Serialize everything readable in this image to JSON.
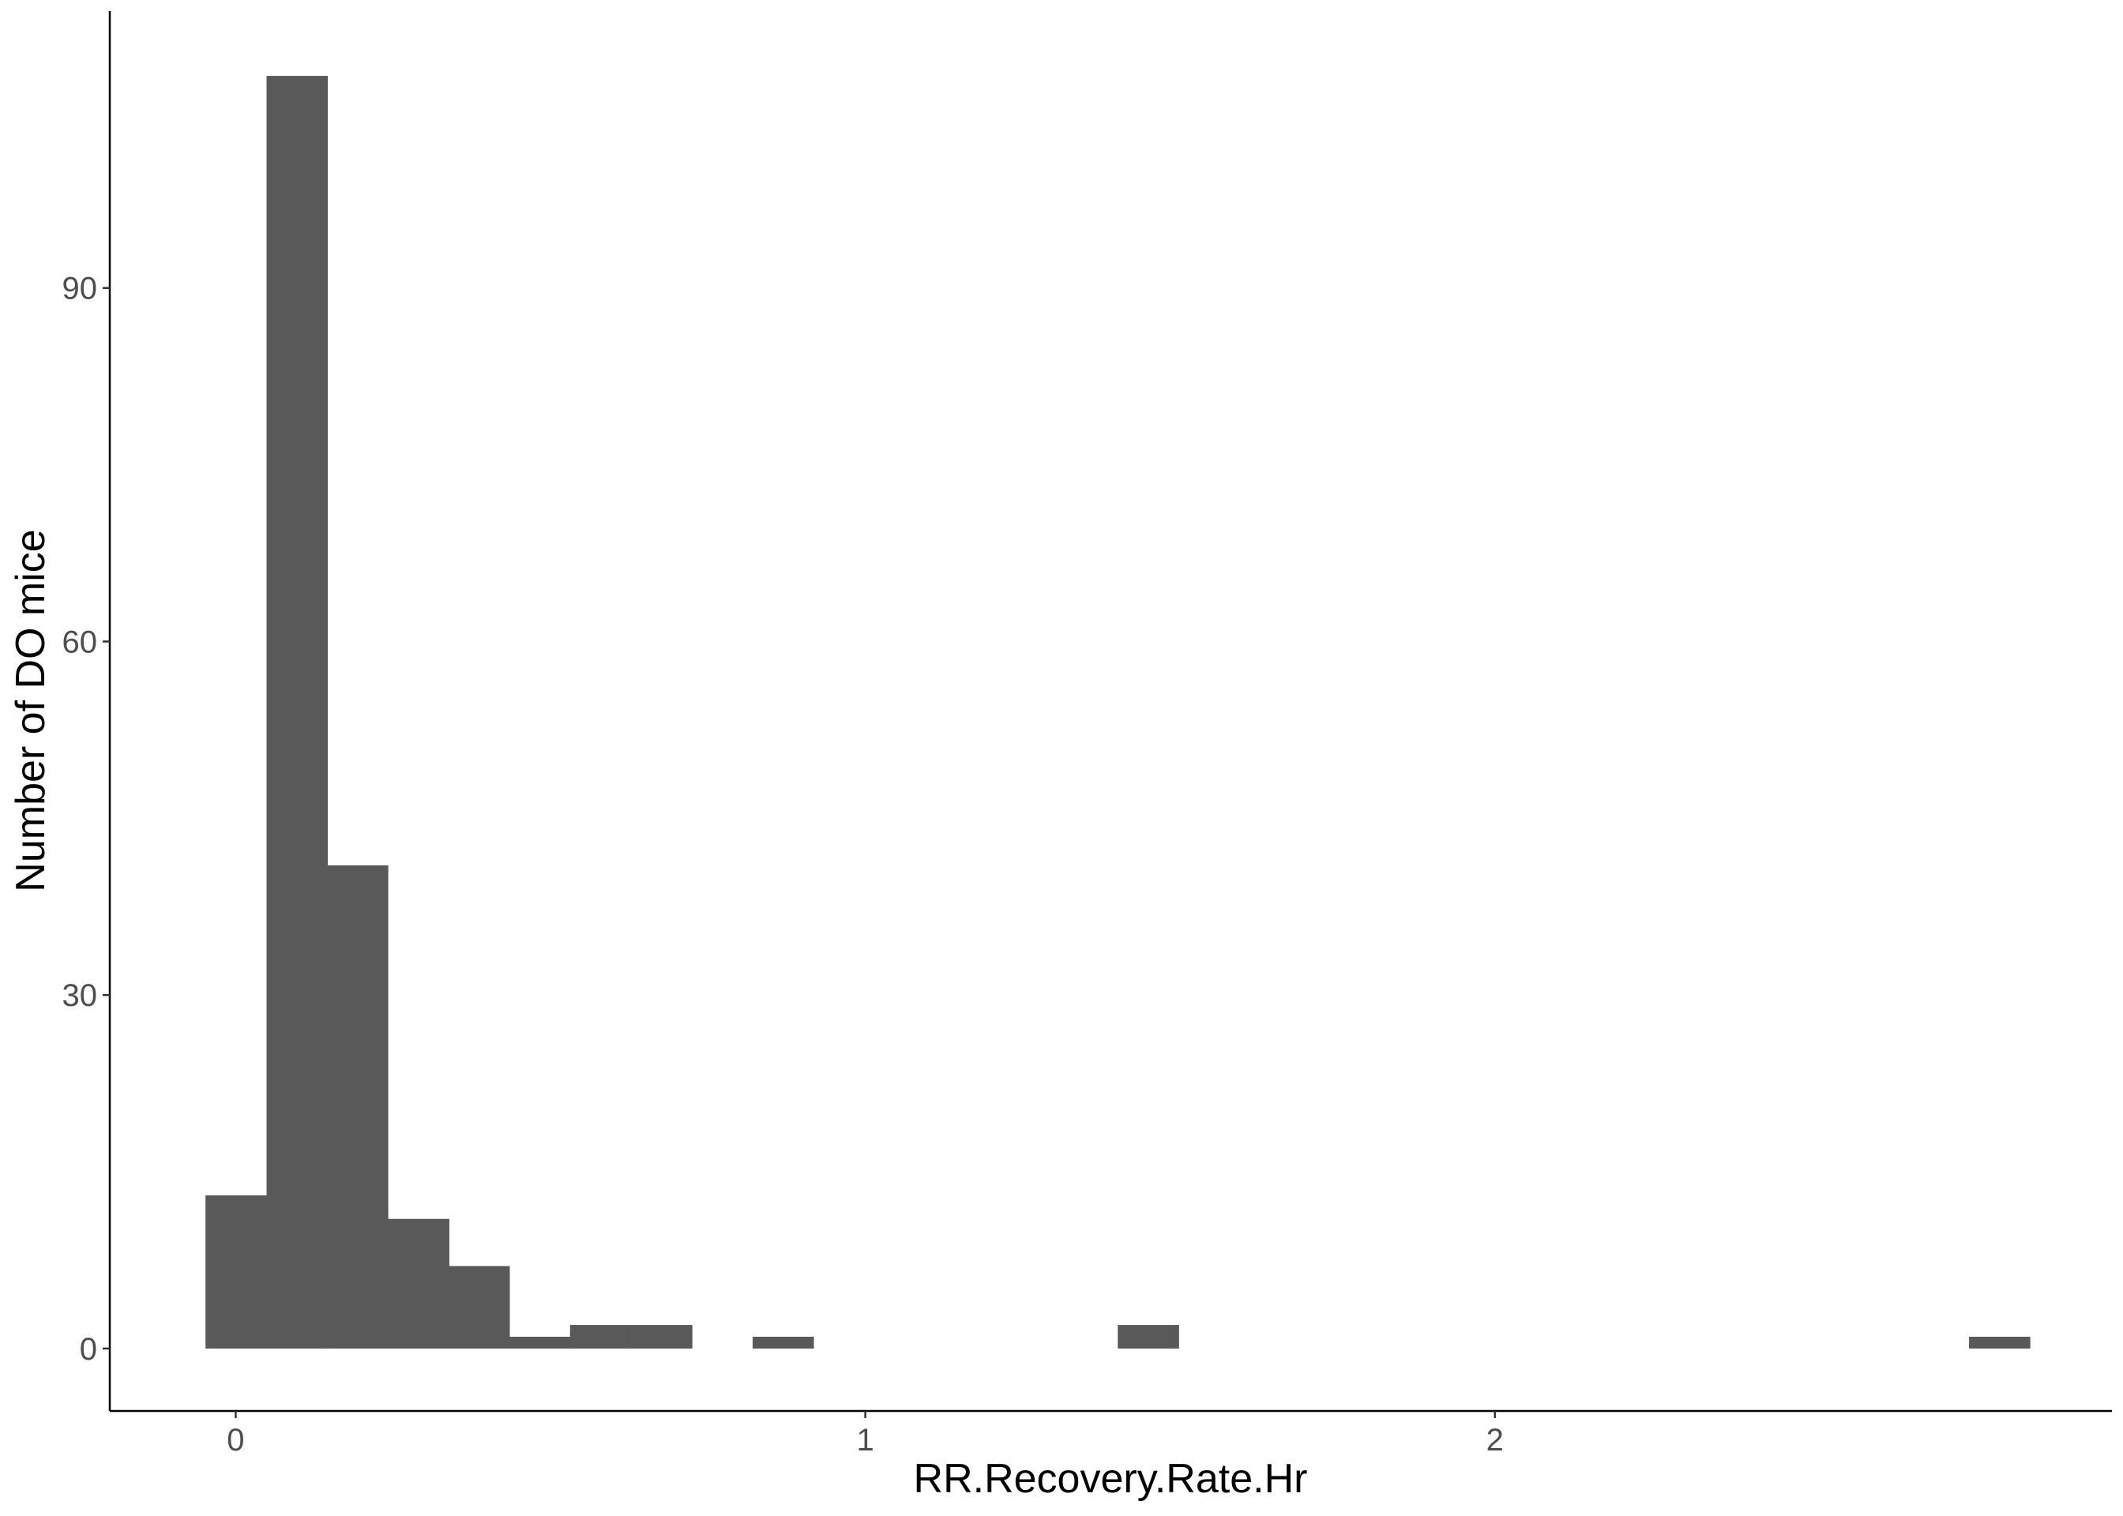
{
  "chart_data": {
    "type": "bar",
    "subtype": "histogram",
    "xlabel": "RR.Recovery.Rate.Hr",
    "ylabel": "Number of DO mice",
    "xlim": [
      -0.2,
      2.98
    ],
    "ylim": [
      -5.3,
      113.5
    ],
    "x_ticks": [
      0,
      1,
      2
    ],
    "y_ticks": [
      0,
      30,
      60,
      90
    ],
    "bin_width": 0.0966,
    "bins": [
      {
        "start": -0.048,
        "count": 13
      },
      {
        "start": 0.049,
        "count": 108
      },
      {
        "start": 0.145,
        "count": 41
      },
      {
        "start": 0.242,
        "count": 11
      },
      {
        "start": 0.338,
        "count": 7
      },
      {
        "start": 0.435,
        "count": 1
      },
      {
        "start": 0.531,
        "count": 2
      },
      {
        "start": 0.628,
        "count": 2
      },
      {
        "start": 0.821,
        "count": 1
      },
      {
        "start": 1.401,
        "count": 2
      },
      {
        "start": 2.753,
        "count": 1
      }
    ],
    "bar_color": "#595959",
    "grid": false,
    "legend": "none"
  }
}
